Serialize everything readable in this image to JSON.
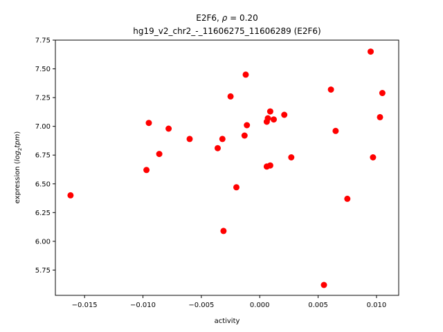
{
  "chart_data": {
    "type": "scatter",
    "title_line1_prefix": "E2F6, ",
    "title_line1_symbol": "ρ",
    "title_line1_suffix": " = 0.20",
    "title_line2": "hg19_v2_chr2_-_11606275_11606289 (E2F6)",
    "xlabel": "activity",
    "ylabel_prefix": "expression (",
    "ylabel_log": "log",
    "ylabel_sub": "2",
    "ylabel_tpm": "tpm",
    "ylabel_suffix": ")",
    "xlim": [
      -0.0175,
      0.0119
    ],
    "ylim": [
      5.53,
      7.75
    ],
    "xticks": [
      -0.015,
      -0.01,
      -0.005,
      0.0,
      0.005,
      0.01
    ],
    "xtick_labels": [
      "−0.015",
      "−0.010",
      "−0.005",
      "0.000",
      "0.005",
      "0.010"
    ],
    "yticks": [
      5.75,
      6.0,
      6.25,
      6.5,
      6.75,
      7.0,
      7.25,
      7.5,
      7.75
    ],
    "ytick_labels": [
      "5.75",
      "6.00",
      "6.25",
      "6.50",
      "6.75",
      "7.00",
      "7.25",
      "7.50",
      "7.75"
    ],
    "marker_color": "#ff0000",
    "grid": false,
    "points": [
      {
        "x": -0.0162,
        "y": 6.4
      },
      {
        "x": -0.0097,
        "y": 6.62
      },
      {
        "x": -0.0095,
        "y": 7.03
      },
      {
        "x": -0.0086,
        "y": 6.76
      },
      {
        "x": -0.0078,
        "y": 6.98
      },
      {
        "x": -0.006,
        "y": 6.89
      },
      {
        "x": -0.0036,
        "y": 6.81
      },
      {
        "x": -0.0032,
        "y": 6.89
      },
      {
        "x": -0.0031,
        "y": 6.09
      },
      {
        "x": -0.0025,
        "y": 7.26
      },
      {
        "x": -0.002,
        "y": 6.47
      },
      {
        "x": -0.0013,
        "y": 6.92
      },
      {
        "x": -0.0012,
        "y": 7.45
      },
      {
        "x": -0.0011,
        "y": 7.01
      },
      {
        "x": 0.0006,
        "y": 6.65
      },
      {
        "x": 0.0006,
        "y": 7.04
      },
      {
        "x": 0.0007,
        "y": 7.07
      },
      {
        "x": 0.0009,
        "y": 6.66
      },
      {
        "x": 0.0009,
        "y": 7.13
      },
      {
        "x": 0.0012,
        "y": 7.06
      },
      {
        "x": 0.0021,
        "y": 7.1
      },
      {
        "x": 0.0027,
        "y": 6.73
      },
      {
        "x": 0.0055,
        "y": 5.62
      },
      {
        "x": 0.0061,
        "y": 7.32
      },
      {
        "x": 0.0065,
        "y": 6.96
      },
      {
        "x": 0.0075,
        "y": 6.37
      },
      {
        "x": 0.0095,
        "y": 7.65
      },
      {
        "x": 0.0097,
        "y": 6.73
      },
      {
        "x": 0.0103,
        "y": 7.08
      },
      {
        "x": 0.0105,
        "y": 7.29
      }
    ]
  }
}
